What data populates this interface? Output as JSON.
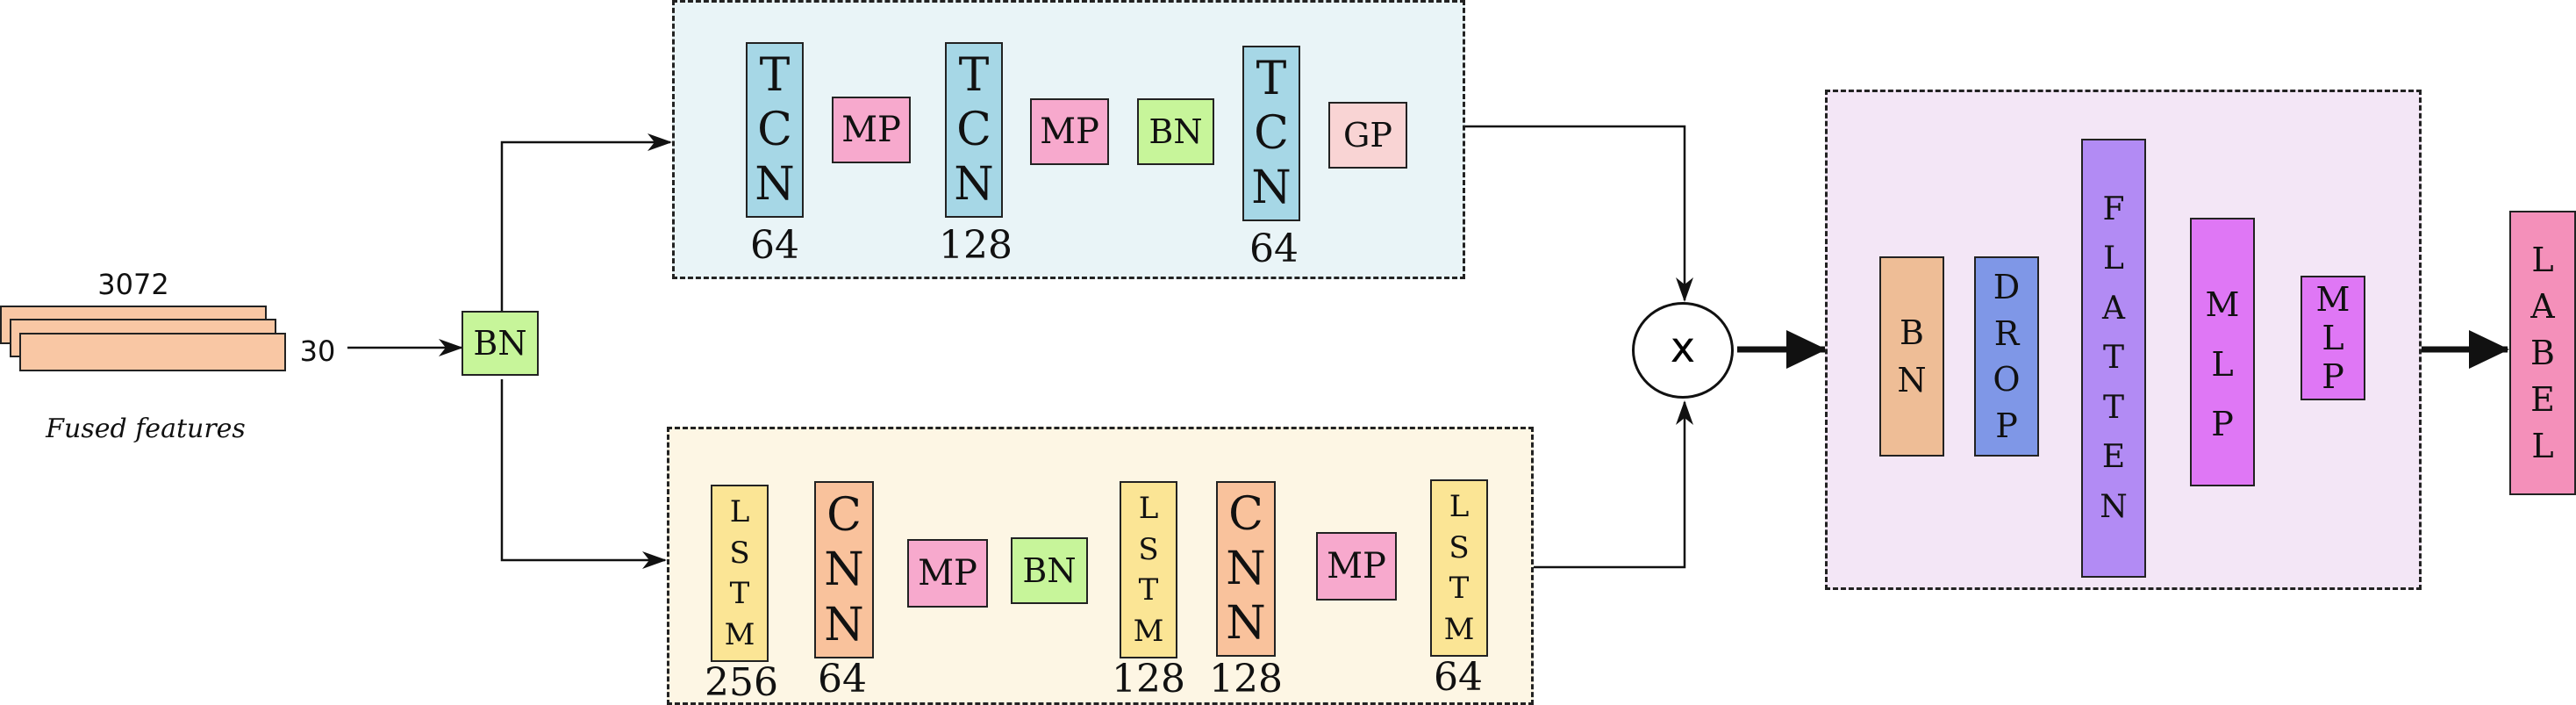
{
  "input": {
    "width_label": "3072",
    "height_label": "30",
    "caption": "Fused features"
  },
  "bn_input": {
    "label": "BN"
  },
  "top_branch": {
    "tcn_1": {
      "label": "TCN",
      "units": "64"
    },
    "mp_1": {
      "label": "MP"
    },
    "tcn_2": {
      "label": "TCN",
      "units": "128"
    },
    "mp_2": {
      "label": "MP"
    },
    "bn": {
      "label": "BN"
    },
    "tcn_3": {
      "label": "TCN",
      "units": "64"
    },
    "gp": {
      "label": "GP"
    }
  },
  "bottom_branch": {
    "lstm_1": {
      "label": "LSTM",
      "units": "256"
    },
    "cnn_1": {
      "label": "CNN",
      "units": "64"
    },
    "mp_1": {
      "label": "MP"
    },
    "bn": {
      "label": "BN"
    },
    "lstm_2": {
      "label": "LSTM",
      "units": "128"
    },
    "cnn_2": {
      "label": "CNN",
      "units": "128"
    },
    "mp_2": {
      "label": "MP"
    },
    "lstm_3": {
      "label": "LSTM",
      "units": "64"
    }
  },
  "merge": {
    "symbol": "x"
  },
  "classifier": {
    "bn": {
      "label": "BN"
    },
    "drop": {
      "label": "DROP"
    },
    "flatten": {
      "label": "FLATTEN"
    },
    "mlp_1": {
      "label": "MLP"
    },
    "mlp_2": {
      "label": "MLP"
    }
  },
  "output": {
    "label": "LABEL"
  },
  "colors": {
    "top_panel_bg": "#e9f4f7",
    "bottom_panel_bg": "#fdf6e4",
    "classifier_panel_bg": "#f3e6f6",
    "tcn": "#a6d7e6",
    "mp": "#f7a9cd",
    "bn": "#c7f59a",
    "gp": "#f9d4d4",
    "lstm": "#fbe595",
    "cnn": "#f9c29c",
    "classifier_bn": "#eebd96",
    "drop": "#7f97e7",
    "flatten": "#b28bf4",
    "mlp": "#df77f5",
    "label": "#f490ba",
    "features": "#f9c7a4"
  }
}
